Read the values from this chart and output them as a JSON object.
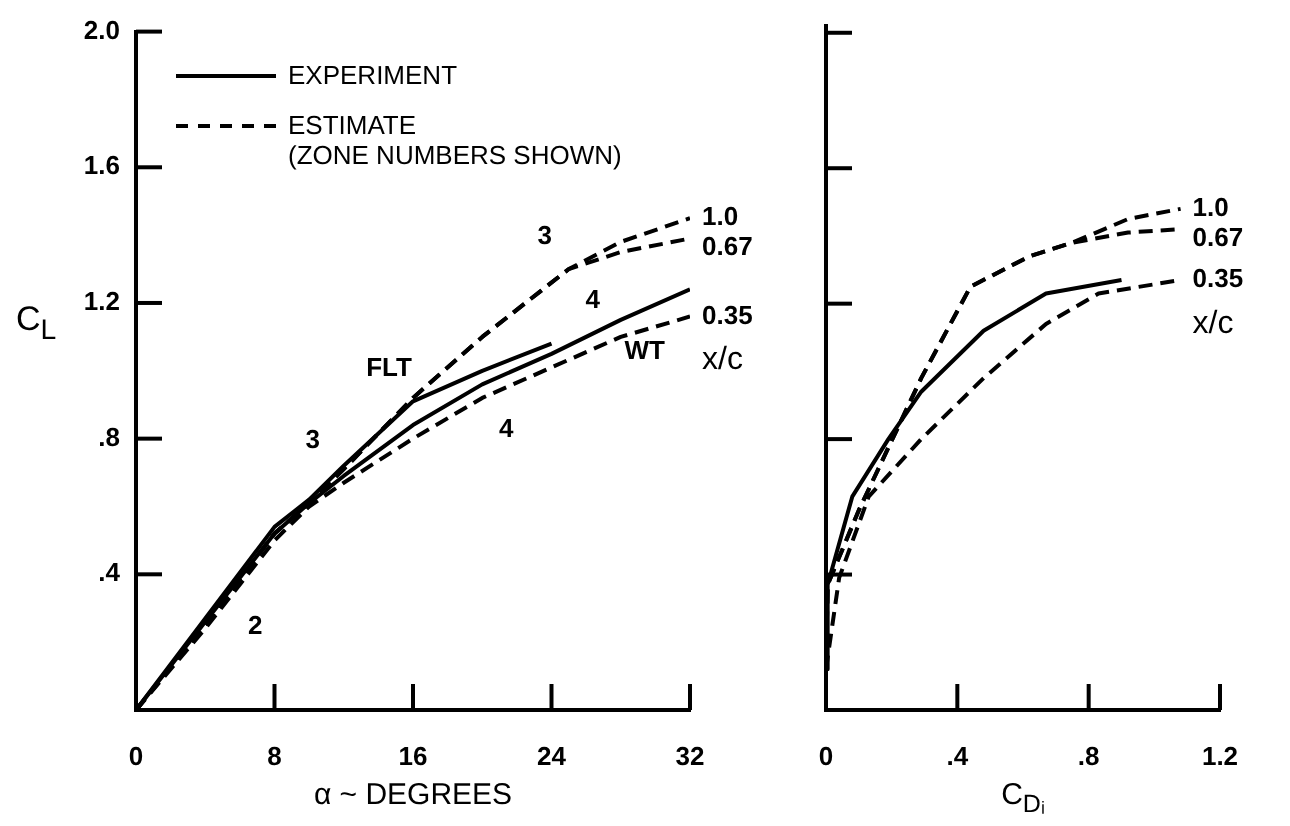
{
  "chart_data": [
    {
      "type": "line",
      "xlabel": "α ~ DEGREES",
      "ylabel": "C$_{L}$",
      "legend_title": "x/c",
      "xlim": [
        0,
        32
      ],
      "xticks": [
        0,
        8,
        16,
        24,
        32
      ],
      "ylim": [
        0,
        2
      ],
      "yticks": [
        {
          "value": 0,
          "label": null
        },
        {
          "value": 0.4,
          "label": ".4"
        },
        {
          "value": 0.8,
          "label": ".8"
        },
        {
          "value": 1.2,
          "label": "1.2"
        },
        {
          "value": 1.6,
          "label": "1.6"
        },
        {
          "value": 2,
          "label": "2.0"
        }
      ],
      "grid": false,
      "legend": false,
      "annotations": [
        "EXPERIMENT",
        "ESTIMATE\n(ZONE NUMBERS SHOWN)",
        {
          "text": "2",
          "x": 5.5,
          "y": 0.34
        },
        {
          "text": "3",
          "x": 11.6,
          "y": 0.7
        },
        {
          "text": "4",
          "x": 20,
          "y": 0.92
        },
        {
          "text": "3",
          "x": 25,
          "y": 1.3
        },
        {
          "text": "4",
          "x": 25,
          "y": 1.3
        },
        {
          "text": "FLT",
          "x": 16,
          "y": 0.91
        },
        {
          "text": "WT",
          "x": 28,
          "y": 1.15
        }
      ],
      "series": [
        {
          "color": "#000000",
          "line_style": "solid",
          "x": [
            0,
            4,
            8,
            10,
            12,
            16,
            20,
            24
          ],
          "values": [
            0,
            0.27,
            0.54,
            0.62,
            0.72,
            0.91,
            1.0,
            1.08
          ]
        },
        {
          "color": "#000000",
          "line_style": "solid",
          "x": [
            0,
            4,
            8,
            10,
            12,
            16,
            20,
            24,
            28,
            32
          ],
          "values": [
            0,
            0.26,
            0.52,
            0.61,
            0.69,
            0.84,
            0.96,
            1.05,
            1.15,
            1.24
          ]
        },
        {
          "name": "1.0",
          "color": "#000000",
          "line_style": "dashed",
          "x": [
            0,
            4,
            8,
            10,
            12,
            16,
            20,
            25,
            28,
            32
          ],
          "values": [
            0,
            0.25,
            0.52,
            0.61,
            0.71,
            0.92,
            1.1,
            1.3,
            1.38,
            1.45
          ]
        },
        {
          "name": "0.67",
          "color": "#000000",
          "line_style": "dashed",
          "x": [
            0,
            4,
            8,
            10,
            12,
            16,
            20,
            25,
            28,
            32
          ],
          "values": [
            0,
            0.25,
            0.52,
            0.61,
            0.71,
            0.92,
            1.1,
            1.3,
            1.35,
            1.39
          ]
        },
        {
          "name": "0.35",
          "color": "#000000",
          "line_style": "dashed",
          "x": [
            0,
            4,
            8,
            10,
            12,
            16,
            20,
            24,
            28,
            32
          ],
          "values": [
            0,
            0.24,
            0.5,
            0.6,
            0.67,
            0.8,
            0.92,
            1.01,
            1.1,
            1.16
          ]
        }
      ]
    },
    {
      "type": "line",
      "xlabel": "C$_{Dᵢ}$",
      "legend_title": "x/c",
      "xlim": [
        0,
        1.2
      ],
      "xticks": [
        0,
        {
          "value": 0.4,
          "label": ".4"
        },
        {
          "value": 0.8,
          "label": ".8"
        },
        1.2
      ],
      "ylim": [
        0,
        2.02
      ],
      "yticks": [
        0,
        0.4,
        0.8,
        1.2,
        1.6,
        2
      ],
      "tick_labels": "x",
      "grid": false,
      "legend": false,
      "series": [
        {
          "color": "#000000",
          "line_style": "solid",
          "x": [
            0,
            0.005,
            0.08,
            0.19,
            0.29,
            0.48,
            0.67,
            0.9
          ],
          "values": [
            0.12,
            0.37,
            0.63,
            0.8,
            0.94,
            1.12,
            1.23,
            1.27
          ]
        },
        {
          "name": "1.0",
          "color": "#000000",
          "line_style": "dashed",
          "x": [
            0,
            0.005,
            0.1,
            0.29,
            0.44,
            0.62,
            0.75,
            0.92,
            1.08
          ],
          "values": [
            0.12,
            0.37,
            0.59,
            0.98,
            1.25,
            1.34,
            1.38,
            1.45,
            1.48
          ]
        },
        {
          "name": "0.67",
          "color": "#000000",
          "line_style": "dashed",
          "x": [
            0,
            0.005,
            0.1,
            0.29,
            0.44,
            0.62,
            0.75,
            0.92,
            1.08
          ],
          "values": [
            0.12,
            0.37,
            0.59,
            0.98,
            1.25,
            1.34,
            1.38,
            1.41,
            1.42
          ]
        },
        {
          "name": "0.35",
          "color": "#000000",
          "line_style": "dashed",
          "x": [
            0,
            0.04,
            0.13,
            0.29,
            0.48,
            0.67,
            0.83,
            1.08
          ],
          "values": [
            0.12,
            0.39,
            0.63,
            0.8,
            0.98,
            1.14,
            1.23,
            1.27
          ]
        }
      ]
    }
  ]
}
